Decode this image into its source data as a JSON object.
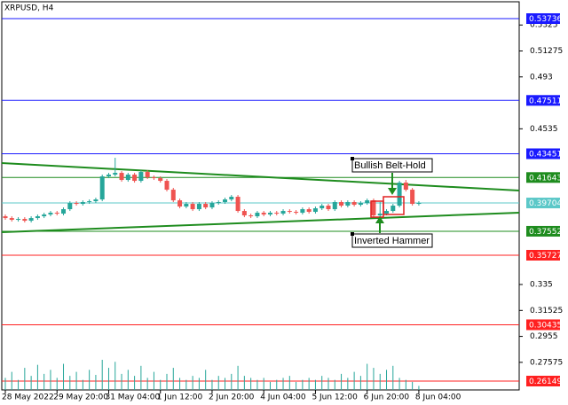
{
  "chart_data": {
    "type": "candlestick",
    "title": "XRPUSD, H4",
    "categories": [
      "28 May 2022",
      null,
      null,
      null,
      null,
      null,
      null,
      null,
      "29 May 20:00",
      null,
      null,
      null,
      null,
      null,
      null,
      null,
      "31 May 04:00",
      null,
      null,
      null,
      null,
      null,
      null,
      null,
      "1 Jun 12:00",
      null,
      null,
      null,
      null,
      null,
      null,
      null,
      "2 Jun 20:00",
      null,
      null,
      null,
      null,
      null,
      null,
      null,
      "4 Jun 04:00",
      null,
      null,
      null,
      null,
      null,
      null,
      null,
      "5 Jun 12:00",
      null,
      null,
      null,
      null,
      null,
      null,
      null,
      "6 Jun 20:00",
      null,
      null,
      null,
      null,
      null,
      null,
      null,
      "8 Jun 04:00"
    ],
    "open": [
      0.38692,
      0.38557,
      0.38423,
      0.3849,
      0.38355,
      0.38557,
      0.38692,
      0.38827,
      0.38962,
      0.38895,
      0.39232,
      0.39704,
      0.39637,
      0.39772,
      0.39839,
      0.39974,
      0.41728,
      0.41862,
      0.41997,
      0.41458,
      0.41862,
      0.4139,
      0.42065,
      0.4166,
      0.41593,
      0.4139,
      0.40716,
      0.39906,
      0.39434,
      0.39637,
      0.39232,
      0.39637,
      0.39367,
      0.39704,
      0.39772,
      0.39974,
      0.40176,
      0.39097,
      0.3876,
      0.38692,
      0.38962,
      0.38827,
      0.38962,
      0.38895,
      0.39097,
      0.3903,
      0.38962,
      0.39232,
      0.3903,
      0.39299,
      0.39502,
      0.39232,
      0.39772,
      0.39502,
      0.39772,
      0.39569,
      0.39704,
      0.39906,
      0.3876,
      0.38895,
      0.39097,
      0.39502,
      0.41255,
      0.40716,
      0.39637
    ],
    "high": [
      0.38827,
      0.38692,
      0.38625,
      0.38625,
      0.38692,
      0.38827,
      0.38962,
      0.39097,
      0.39097,
      0.39367,
      0.39839,
      0.39839,
      0.39906,
      0.39974,
      0.40109,
      0.41862,
      0.41997,
      0.43144,
      0.42132,
      0.41997,
      0.41997,
      0.422,
      0.422,
      0.41795,
      0.41728,
      0.41525,
      0.40851,
      0.40041,
      0.39772,
      0.39772,
      0.39772,
      0.39772,
      0.39839,
      0.39906,
      0.40109,
      0.40311,
      0.40311,
      0.39232,
      0.38895,
      0.39097,
      0.39097,
      0.39097,
      0.39097,
      0.39232,
      0.39232,
      0.39165,
      0.39367,
      0.39367,
      0.39434,
      0.39637,
      0.39637,
      0.39906,
      0.39906,
      0.39906,
      0.39906,
      0.39839,
      0.40041,
      0.40041,
      0.39772,
      0.39232,
      0.39637,
      0.4139,
      0.41458,
      0.40851,
      0.39839
    ],
    "low": [
      0.38423,
      0.38288,
      0.38288,
      0.3822,
      0.3822,
      0.38423,
      0.38557,
      0.38692,
      0.3876,
      0.3876,
      0.39097,
      0.39502,
      0.39502,
      0.39637,
      0.39704,
      0.39839,
      0.41593,
      0.41728,
      0.41323,
      0.41323,
      0.41255,
      0.41255,
      0.41525,
      0.41458,
      0.41255,
      0.40581,
      0.39772,
      0.39299,
      0.39299,
      0.39097,
      0.39097,
      0.39232,
      0.39232,
      0.39569,
      0.39637,
      0.39839,
      0.38962,
      0.38625,
      0.38557,
      0.38557,
      0.38692,
      0.38692,
      0.3876,
      0.3876,
      0.38895,
      0.38827,
      0.38827,
      0.38895,
      0.38895,
      0.39165,
      0.39097,
      0.39097,
      0.39367,
      0.39367,
      0.39434,
      0.39434,
      0.39569,
      0.38625,
      0.38625,
      0.3876,
      0.38962,
      0.39367,
      0.40581,
      0.39502,
      0.39502
    ],
    "close": [
      0.38557,
      0.38423,
      0.3849,
      0.38355,
      0.38557,
      0.38692,
      0.38827,
      0.38962,
      0.38895,
      0.39232,
      0.39704,
      0.39637,
      0.39772,
      0.39839,
      0.39974,
      0.41728,
      0.41862,
      0.41997,
      0.41458,
      0.41862,
      0.4139,
      0.42065,
      0.4166,
      0.41593,
      0.4139,
      0.40716,
      0.39906,
      0.39434,
      0.39637,
      0.39232,
      0.39637,
      0.39367,
      0.39704,
      0.39772,
      0.39974,
      0.40176,
      0.39097,
      0.3876,
      0.38692,
      0.38962,
      0.38827,
      0.38962,
      0.38895,
      0.39097,
      0.3903,
      0.38962,
      0.39232,
      0.3903,
      0.39299,
      0.39502,
      0.39232,
      0.39772,
      0.39502,
      0.39772,
      0.39569,
      0.39704,
      0.39906,
      0.3876,
      0.38895,
      0.39097,
      0.39502,
      0.41255,
      0.40716,
      0.39637,
      0.39704
    ],
    "volume": [
      12,
      18,
      10,
      22,
      14,
      25,
      16,
      20,
      12,
      26,
      14,
      18,
      10,
      20,
      15,
      30,
      22,
      28,
      16,
      20,
      14,
      24,
      12,
      18,
      10,
      16,
      22,
      12,
      10,
      14,
      12,
      20,
      10,
      14,
      12,
      16,
      24,
      14,
      12,
      10,
      12,
      8,
      10,
      12,
      14,
      8,
      10,
      12,
      10,
      14,
      12,
      10,
      16,
      12,
      18,
      14,
      26,
      22,
      16,
      20,
      24,
      12,
      10,
      8,
      4
    ],
    "up_color": "#26a69a",
    "down_color": "#ef5350",
    "volume_color": "#26a69a",
    "ylim": [
      0.25475,
      0.55018
    ],
    "yticks": [
      0.5325,
      0.51275,
      0.493,
      0.4535,
      0.335,
      0.31525,
      0.2955,
      0.27575
    ],
    "levels": [
      {
        "value": 0.53736,
        "color": "#1a1aff"
      },
      {
        "value": 0.47511,
        "color": "#1a1aff"
      },
      {
        "value": 0.43451,
        "color": "#1a1aff"
      },
      {
        "value": 0.41643,
        "color": "#1e8c1e"
      },
      {
        "value": 0.39704,
        "color": "#5cc8c8"
      },
      {
        "value": 0.37552,
        "color": "#1e8c1e"
      },
      {
        "value": 0.35727,
        "color": "#ff2020"
      },
      {
        "value": 0.30435,
        "color": "#ff2020"
      },
      {
        "value": 0.26149,
        "color": "#ff2020"
      }
    ],
    "annotations": [
      "Bullish Belt-Hold",
      "Inverted Hammer"
    ]
  }
}
